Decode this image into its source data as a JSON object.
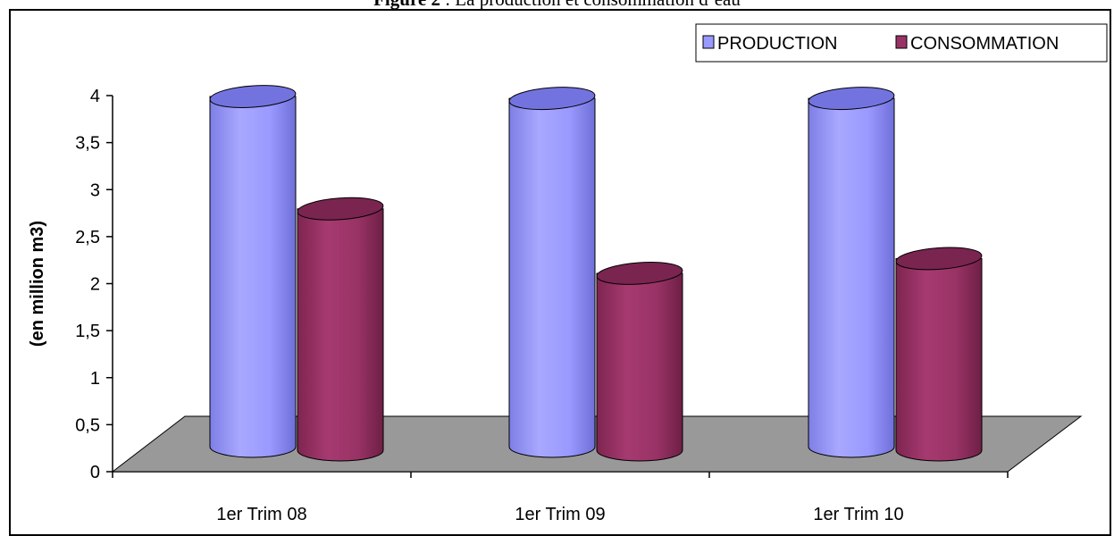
{
  "figure": {
    "title_bold": "Figure 2",
    "title_rest": " : La production et consommation d’eau"
  },
  "chart_data": {
    "type": "bar",
    "style": "3d-cylinder",
    "categories": [
      "1er Trim 08",
      "1er Trim 09",
      "1er Trim 10"
    ],
    "series": [
      {
        "name": "PRODUCTION",
        "color": "#9999FF",
        "values": [
          3.8,
          3.78,
          3.78
        ]
      },
      {
        "name": "CONSOMMATION",
        "color": "#993366",
        "values": [
          2.62,
          1.92,
          2.08
        ]
      }
    ],
    "ylabel": "(en million m3)",
    "ylim": [
      0,
      4
    ],
    "yticks": [
      "0",
      "0,5",
      "1",
      "1,5",
      "2",
      "2,5",
      "3",
      "3,5",
      "4"
    ],
    "legend_position": "top-right",
    "floor_color": "#999999"
  }
}
